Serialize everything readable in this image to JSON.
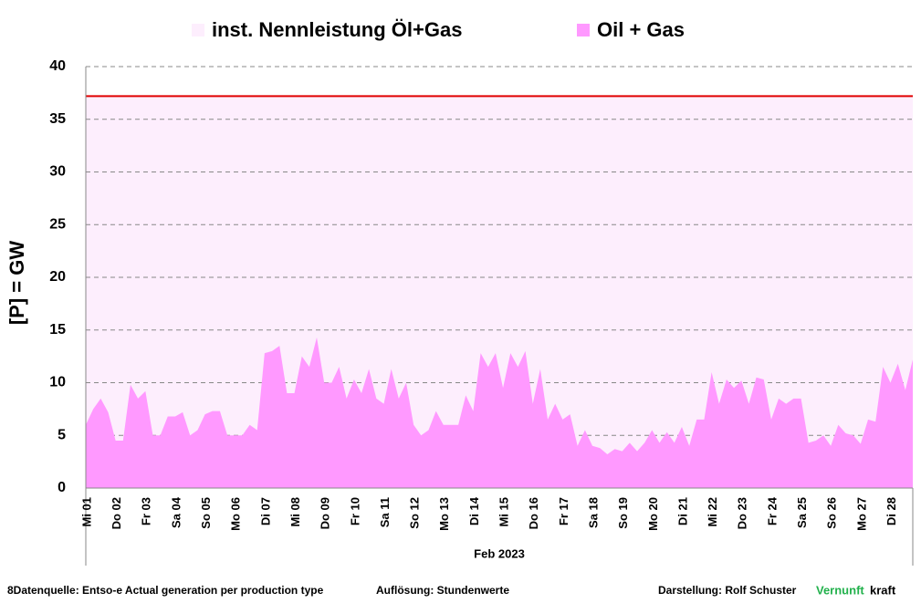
{
  "chart_data": {
    "type": "area",
    "y_label": "[P]  = GW",
    "x_label": "Feb 2023",
    "ylim": [
      0,
      40
    ],
    "yticks": [
      0,
      5,
      10,
      15,
      20,
      25,
      30,
      35,
      40
    ],
    "grid": true,
    "legend": "top",
    "categories": [
      "Mi 01",
      null,
      null,
      null,
      "Do 02",
      null,
      null,
      null,
      "Fr 03",
      null,
      null,
      null,
      "Sa 04",
      null,
      null,
      null,
      "So 05",
      null,
      null,
      null,
      "Mo 06",
      null,
      null,
      null,
      "Di 07",
      null,
      null,
      null,
      "Mi 08",
      null,
      null,
      null,
      "Do 09",
      null,
      null,
      null,
      "Fr 10",
      null,
      null,
      null,
      "Sa 11",
      null,
      null,
      null,
      "So 12",
      null,
      null,
      null,
      "Mo 13",
      null,
      null,
      null,
      "Di 14",
      null,
      null,
      null,
      "Mi 15",
      null,
      null,
      null,
      "Do 16",
      null,
      null,
      null,
      "Fr 17",
      null,
      null,
      null,
      "Sa 18",
      null,
      null,
      null,
      "So 19",
      null,
      null,
      null,
      "Mo 20",
      null,
      null,
      null,
      "Di 21",
      null,
      null,
      null,
      "Mi 22",
      null,
      null,
      null,
      "Do 23",
      null,
      null,
      null,
      "Fr 24",
      null,
      null,
      null,
      "Sa 25",
      null,
      null,
      null,
      "So 26",
      null,
      null,
      null,
      "Mo 27",
      null,
      null,
      null,
      "Di 28",
      null,
      null,
      null
    ],
    "series": [
      {
        "name": "inst. Nennleistung Öl+Gas",
        "color": "#fdeefd",
        "line_color": "#e00000",
        "values": [
          37.2,
          37.2,
          37.2,
          37.2,
          37.2,
          37.2,
          37.2,
          37.2,
          37.2,
          37.2,
          37.2,
          37.2,
          37.2,
          37.2,
          37.2,
          37.2,
          37.2,
          37.2,
          37.2,
          37.2,
          37.2,
          37.2,
          37.2,
          37.2,
          37.2,
          37.2,
          37.2,
          37.2,
          37.2,
          37.2,
          37.2,
          37.2,
          37.2,
          37.2,
          37.2,
          37.2,
          37.2,
          37.2,
          37.2,
          37.2,
          37.2,
          37.2,
          37.2,
          37.2,
          37.2,
          37.2,
          37.2,
          37.2,
          37.2,
          37.2,
          37.2,
          37.2,
          37.2,
          37.2,
          37.2,
          37.2,
          37.2,
          37.2,
          37.2,
          37.2,
          37.2,
          37.2,
          37.2,
          37.2,
          37.2,
          37.2,
          37.2,
          37.2,
          37.2,
          37.2,
          37.2,
          37.2,
          37.2,
          37.2,
          37.2,
          37.2,
          37.2,
          37.2,
          37.2,
          37.2,
          37.2,
          37.2,
          37.2,
          37.2,
          37.2,
          37.2,
          37.2,
          37.2,
          37.2,
          37.2,
          37.2,
          37.2,
          37.2,
          37.2,
          37.2,
          37.2,
          37.2,
          37.2,
          37.2,
          37.2,
          37.2,
          37.2,
          37.2,
          37.2,
          37.2,
          37.2,
          37.2,
          37.2,
          37.2,
          37.2,
          37.2,
          37.2
        ]
      },
      {
        "name": "Oil + Gas",
        "color": "#ff99ff",
        "values": [
          6,
          7.5,
          8.5,
          7.2,
          4.5,
          4.5,
          9.8,
          8.5,
          9.2,
          5,
          5,
          6.8,
          6.8,
          7.2,
          5,
          5.5,
          7,
          7.3,
          7.3,
          5,
          5,
          5,
          6,
          5.5,
          12.8,
          13,
          13.5,
          9,
          9,
          12.5,
          11.5,
          14.3,
          10,
          10,
          11.5,
          8.5,
          10.3,
          9,
          11.3,
          8.5,
          8,
          11.3,
          8.5,
          10,
          6,
          5,
          5.5,
          7.3,
          6,
          6,
          6,
          8.8,
          7.3,
          12.8,
          11.5,
          12.8,
          9.5,
          12.8,
          11.5,
          13,
          8,
          11.3,
          6.5,
          8,
          6.5,
          7,
          4,
          5.5,
          4,
          3.8,
          3.2,
          3.7,
          3.5,
          4.3,
          3.5,
          4.3,
          5.5,
          4.3,
          5.3,
          4.3,
          5.8,
          4,
          6.5,
          6.5,
          11,
          8,
          10.3,
          9.5,
          10.2,
          8,
          10.5,
          10.3,
          6.5,
          8.5,
          8,
          8.5,
          8.5,
          4.3,
          4.5,
          5,
          4,
          6,
          5.2,
          5,
          4.2,
          6.5,
          6.3,
          11.5,
          10,
          11.8,
          9.3,
          12.2
        ]
      }
    ]
  },
  "footer": {
    "source": "8Datenquelle: Entso-e  Actual generation per production type",
    "resolution": "Auflösung: Stundenwerte",
    "credit": "Darstellung:  Rolf Schuster",
    "brand_1": "Vernunft",
    "brand_2": "kraft"
  }
}
